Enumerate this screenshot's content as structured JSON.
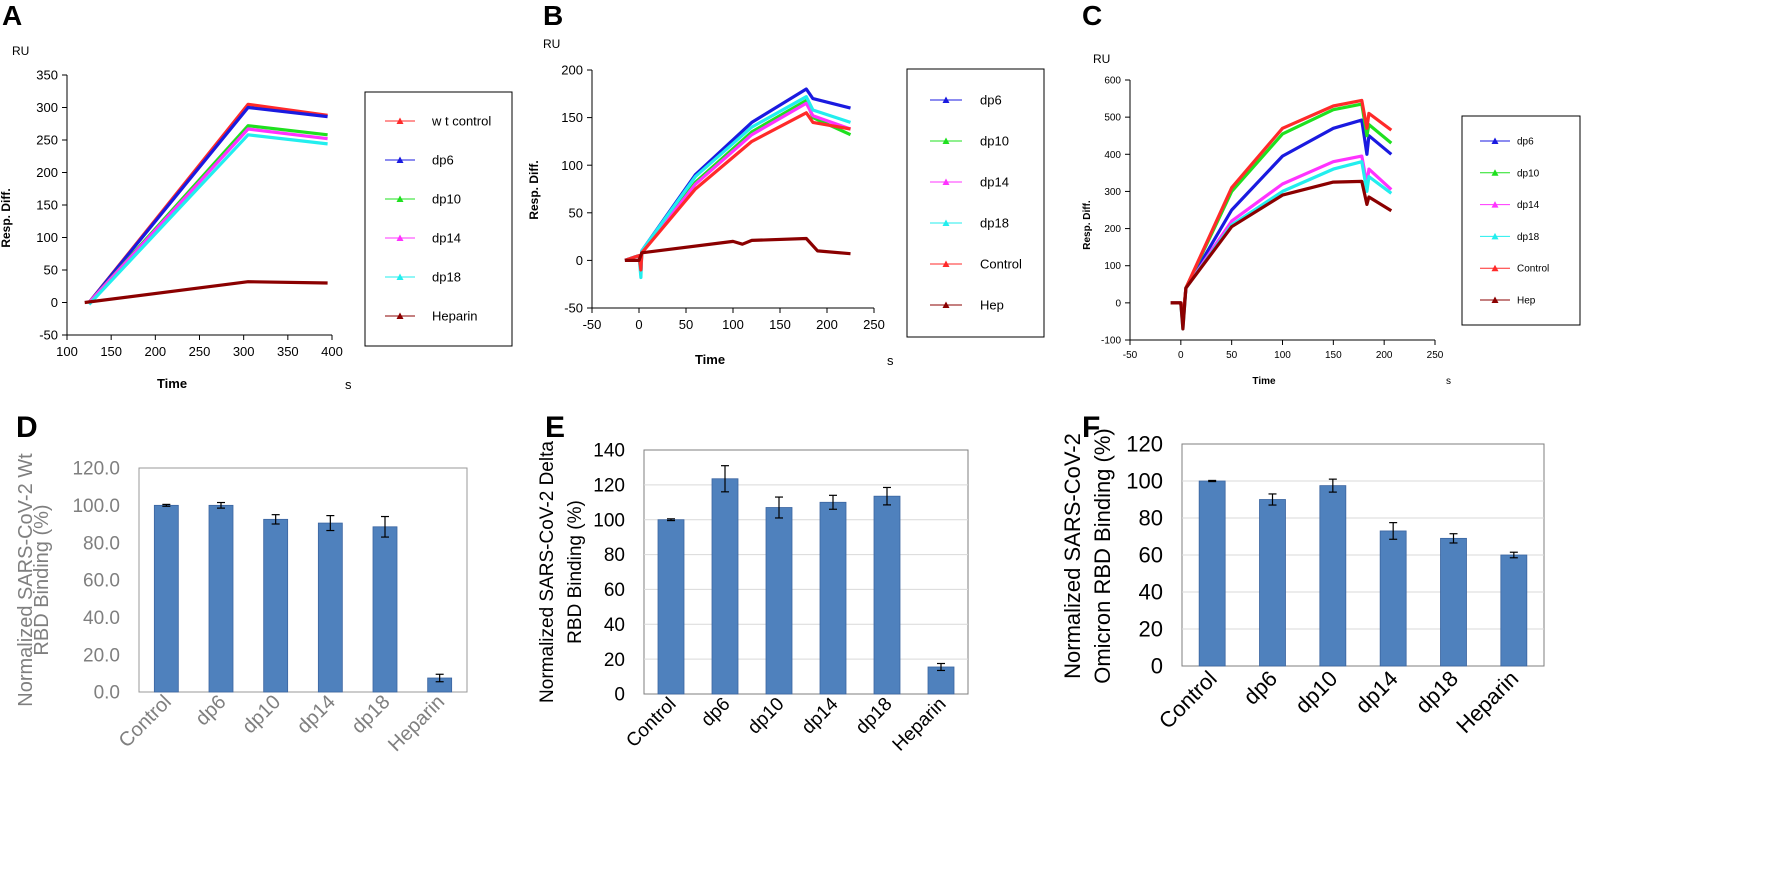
{
  "chart_data": [
    {
      "panel": "A",
      "type": "line",
      "ylabel": "Resp. Diff.",
      "unit": "RU",
      "xlabel": "Time",
      "xunit": "s",
      "xlim": [
        100,
        400
      ],
      "ylim": [
        -50,
        350
      ],
      "xticks": [
        100,
        150,
        200,
        250,
        300,
        350,
        400
      ],
      "yticks": [
        -50,
        0,
        50,
        100,
        150,
        200,
        250,
        300,
        350
      ],
      "legend": [
        "w t control",
        "dp6",
        "dp10",
        "dp14",
        "dp18",
        "Heparin"
      ],
      "colors": [
        "#ff2a2a",
        "#1a1ae0",
        "#1fe01f",
        "#ff33ff",
        "#22eeee",
        "#8b0000"
      ],
      "series": [
        {
          "name": "w t control",
          "points": [
            [
              125,
              0
            ],
            [
              305,
              305
            ],
            [
              395,
              288
            ]
          ]
        },
        {
          "name": "dp6",
          "points": [
            [
              125,
              0
            ],
            [
              305,
              300
            ],
            [
              395,
              286
            ]
          ]
        },
        {
          "name": "dp10",
          "points": [
            [
              125,
              0
            ],
            [
              305,
              272
            ],
            [
              395,
              258
            ]
          ]
        },
        {
          "name": "dp14",
          "points": [
            [
              125,
              0
            ],
            [
              305,
              267
            ],
            [
              395,
              252
            ]
          ]
        },
        {
          "name": "dp18",
          "points": [
            [
              125,
              -3
            ],
            [
              305,
              258
            ],
            [
              395,
              244
            ]
          ]
        },
        {
          "name": "Heparin",
          "points": [
            [
              120,
              0
            ],
            [
              305,
              32
            ],
            [
              395,
              30
            ]
          ]
        }
      ]
    },
    {
      "panel": "B",
      "type": "line",
      "ylabel": "Resp. Diff.",
      "unit": "RU",
      "xlabel": "Time",
      "xunit": "s",
      "xlim": [
        -50,
        250
      ],
      "ylim": [
        -50,
        200
      ],
      "xticks": [
        -50,
        0,
        50,
        100,
        150,
        200,
        250
      ],
      "yticks": [
        -50,
        0,
        50,
        100,
        150,
        200
      ],
      "legend": [
        "dp6",
        "dp10",
        "dp14",
        "dp18",
        "Control",
        "Hep"
      ],
      "colors": [
        "#1a1ae0",
        "#1fe01f",
        "#ff33ff",
        "#22eeee",
        "#ff2a2a",
        "#8b0000"
      ],
      "series": [
        {
          "name": "dp6",
          "points": [
            [
              -15,
              0
            ],
            [
              0,
              5
            ],
            [
              2,
              -10
            ],
            [
              3,
              10
            ],
            [
              60,
              90
            ],
            [
              120,
              145
            ],
            [
              178,
              180
            ],
            [
              185,
              170
            ],
            [
              225,
              160
            ]
          ]
        },
        {
          "name": "dp10",
          "points": [
            [
              -15,
              0
            ],
            [
              0,
              5
            ],
            [
              2,
              -12
            ],
            [
              3,
              8
            ],
            [
              60,
              82
            ],
            [
              120,
              135
            ],
            [
              178,
              168
            ],
            [
              185,
              150
            ],
            [
              225,
              132
            ]
          ]
        },
        {
          "name": "dp14",
          "points": [
            [
              -15,
              0
            ],
            [
              0,
              5
            ],
            [
              2,
              -12
            ],
            [
              3,
              8
            ],
            [
              60,
              80
            ],
            [
              120,
              132
            ],
            [
              178,
              165
            ],
            [
              185,
              152
            ],
            [
              225,
              138
            ]
          ]
        },
        {
          "name": "dp18",
          "points": [
            [
              -15,
              0
            ],
            [
              0,
              5
            ],
            [
              2,
              -18
            ],
            [
              3,
              10
            ],
            [
              60,
              88
            ],
            [
              120,
              140
            ],
            [
              178,
              172
            ],
            [
              185,
              158
            ],
            [
              225,
              145
            ]
          ]
        },
        {
          "name": "Control",
          "points": [
            [
              -15,
              0
            ],
            [
              0,
              5
            ],
            [
              2,
              -10
            ],
            [
              3,
              8
            ],
            [
              60,
              75
            ],
            [
              120,
              125
            ],
            [
              178,
              155
            ],
            [
              185,
              145
            ],
            [
              225,
              138
            ]
          ]
        },
        {
          "name": "Hep",
          "points": [
            [
              -15,
              0
            ],
            [
              0,
              0
            ],
            [
              3,
              8
            ],
            [
              100,
              20
            ],
            [
              110,
              17
            ],
            [
              120,
              21
            ],
            [
              178,
              23
            ],
            [
              190,
              10
            ],
            [
              225,
              7
            ]
          ]
        }
      ]
    },
    {
      "panel": "C",
      "type": "line",
      "ylabel": "Resp. Diff.",
      "unit": "RU",
      "xlabel": "Time",
      "xunit": "s",
      "xlim": [
        -50,
        250
      ],
      "ylim": [
        -100,
        600
      ],
      "xticks": [
        -50,
        0,
        50,
        100,
        150,
        200,
        250
      ],
      "yticks": [
        -100,
        0,
        100,
        200,
        300,
        400,
        500,
        600
      ],
      "legend": [
        "dp6",
        "dp10",
        "dp14",
        "dp18",
        "Control",
        "Hep"
      ],
      "colors": [
        "#1a1ae0",
        "#1fe01f",
        "#ff33ff",
        "#22eeee",
        "#ff2a2a",
        "#8b0000"
      ],
      "series": [
        {
          "name": "dp6",
          "points": [
            [
              -10,
              0
            ],
            [
              0,
              0
            ],
            [
              2,
              -50
            ],
            [
              5,
              40
            ],
            [
              50,
              250
            ],
            [
              100,
              395
            ],
            [
              150,
              470
            ],
            [
              178,
              492
            ],
            [
              183,
              400
            ],
            [
              185,
              450
            ],
            [
              207,
              400
            ]
          ]
        },
        {
          "name": "dp10",
          "points": [
            [
              -10,
              0
            ],
            [
              0,
              0
            ],
            [
              2,
              -50
            ],
            [
              5,
              40
            ],
            [
              50,
              300
            ],
            [
              100,
              455
            ],
            [
              150,
              520
            ],
            [
              178,
              535
            ],
            [
              183,
              450
            ],
            [
              185,
              480
            ],
            [
              207,
              430
            ]
          ]
        },
        {
          "name": "dp14",
          "points": [
            [
              -10,
              0
            ],
            [
              0,
              0
            ],
            [
              2,
              -60
            ],
            [
              5,
              40
            ],
            [
              50,
              220
            ],
            [
              100,
              320
            ],
            [
              150,
              380
            ],
            [
              178,
              395
            ],
            [
              183,
              320
            ],
            [
              185,
              360
            ],
            [
              207,
              305
            ]
          ]
        },
        {
          "name": "dp18",
          "points": [
            [
              -10,
              0
            ],
            [
              0,
              0
            ],
            [
              2,
              -70
            ],
            [
              5,
              40
            ],
            [
              50,
              210
            ],
            [
              100,
              300
            ],
            [
              150,
              360
            ],
            [
              178,
              380
            ],
            [
              183,
              300
            ],
            [
              185,
              340
            ],
            [
              207,
              295
            ]
          ]
        },
        {
          "name": "Control",
          "points": [
            [
              -10,
              0
            ],
            [
              0,
              0
            ],
            [
              2,
              -40
            ],
            [
              5,
              40
            ],
            [
              50,
              310
            ],
            [
              100,
              470
            ],
            [
              150,
              530
            ],
            [
              178,
              545
            ],
            [
              183,
              470
            ],
            [
              185,
              510
            ],
            [
              207,
              465
            ]
          ]
        },
        {
          "name": "Hep",
          "points": [
            [
              -10,
              0
            ],
            [
              0,
              0
            ],
            [
              2,
              -70
            ],
            [
              5,
              40
            ],
            [
              50,
              205
            ],
            [
              100,
              290
            ],
            [
              150,
              325
            ],
            [
              178,
              327
            ],
            [
              183,
              265
            ],
            [
              185,
              285
            ],
            [
              207,
              248
            ]
          ]
        }
      ]
    },
    {
      "panel": "D",
      "type": "bar",
      "ylabel": "Normalized SARS-CoV-2 Wt RBD Binding (%)",
      "ylabel_lines": [
        "Normalized SARS-CoV-2 Wt",
        "RBD Binding (%)"
      ],
      "categories": [
        "Control",
        "dp6",
        "dp10",
        "dp14",
        "dp18",
        "Heparin"
      ],
      "values": [
        100,
        100,
        92.5,
        90.5,
        88.5,
        7.5
      ],
      "errors": [
        0.5,
        1.5,
        2.5,
        4,
        5.5,
        2
      ],
      "ylim": [
        0,
        120
      ],
      "yticks": [
        0,
        20,
        40,
        60,
        80,
        100,
        120
      ],
      "tick_decimals": 1
    },
    {
      "panel": "E",
      "type": "bar",
      "ylabel": "Normalized SARS-CoV-2 Delta RBD Binding (%)",
      "ylabel_lines": [
        "Normalized SARS-CoV-2 Delta",
        "RBD Binding (%)"
      ],
      "categories": [
        "Control",
        "dp6",
        "dp10",
        "dp14",
        "dp18",
        "Heparin"
      ],
      "values": [
        100,
        123.5,
        107,
        110,
        113.5,
        15.5
      ],
      "errors": [
        0.5,
        7.5,
        6,
        4,
        5,
        2
      ],
      "ylim": [
        0,
        140
      ],
      "yticks": [
        0,
        20,
        40,
        60,
        80,
        100,
        120,
        140
      ],
      "tick_decimals": 0
    },
    {
      "panel": "F",
      "type": "bar",
      "ylabel": "Normalized SARS-CoV-2 Omicron RBD Binding (%)",
      "ylabel_lines": [
        "Normalized SARS-CoV-2",
        "Omicron RBD Binding (%)"
      ],
      "categories": [
        "Control",
        "dp6",
        "dp10",
        "dp14",
        "dp18",
        "Heparin"
      ],
      "values": [
        100,
        90,
        97.5,
        73,
        69,
        60
      ],
      "errors": [
        0.3,
        3,
        3.5,
        4.5,
        2.5,
        1.5
      ],
      "ylim": [
        0,
        120
      ],
      "yticks": [
        0,
        20,
        40,
        60,
        80,
        100,
        120
      ],
      "tick_decimals": 0
    }
  ]
}
